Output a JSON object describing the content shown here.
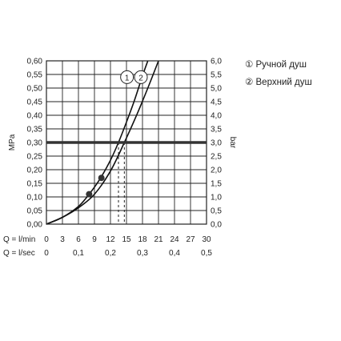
{
  "chart_data": {
    "type": "line",
    "x": [
      0,
      3,
      6,
      9,
      12,
      15,
      18,
      21,
      24,
      27,
      30
    ],
    "xlim": [
      0,
      30
    ],
    "x_tick_labels": [
      "0",
      "3",
      "6",
      "9",
      "12",
      "15",
      "18",
      "21",
      "24",
      "27",
      "30"
    ],
    "x_row_label": "Q = l/min",
    "x2_row_label": "Q = l/sec",
    "x2_tick_labels": [
      "0",
      "0,1",
      "0,2",
      "0,3",
      "0,4",
      "0,5"
    ],
    "x2_tick_values": [
      0,
      6,
      12,
      18,
      24,
      30
    ],
    "ylabel": "MPa",
    "ylim": [
      0,
      0.6
    ],
    "y_tick_labels": [
      "0,00",
      "0,05",
      "0,10",
      "0,15",
      "0,20",
      "0,25",
      "0,30",
      "0,35",
      "0,40",
      "0,45",
      "0,50",
      "0,55",
      "0,60"
    ],
    "y2label": "bar",
    "y2_tick_labels": [
      "0,0",
      "0,5",
      "1,0",
      "1,5",
      "2,0",
      "2,5",
      "3,0",
      "3,5",
      "4,0",
      "4,5",
      "5,0",
      "5,5",
      "6,0"
    ],
    "reference_line": {
      "y": 0.3
    },
    "series": [
      {
        "name": "Ручной душ",
        "marker": "1",
        "points": [
          [
            0,
            0
          ],
          [
            3,
            0.025
          ],
          [
            6,
            0.065
          ],
          [
            8,
            0.11
          ],
          [
            10,
            0.165
          ],
          [
            12,
            0.235
          ],
          [
            13.5,
            0.3
          ],
          [
            15,
            0.375
          ],
          [
            16.5,
            0.455
          ],
          [
            18,
            0.545
          ],
          [
            19,
            0.6
          ]
        ],
        "highlight_points": [
          [
            8,
            0.11
          ],
          [
            10.3,
            0.17
          ]
        ],
        "flow_at_reference": 13.5
      },
      {
        "name": "Верхний душ",
        "marker": "2",
        "points": [
          [
            0,
            0
          ],
          [
            3,
            0.025
          ],
          [
            6,
            0.06
          ],
          [
            9,
            0.11
          ],
          [
            12,
            0.195
          ],
          [
            14.6,
            0.3
          ],
          [
            17,
            0.405
          ],
          [
            19,
            0.5
          ],
          [
            21,
            0.6
          ]
        ],
        "flow_at_reference": 14.6
      }
    ],
    "grid": true,
    "legend_placement": "right"
  }
}
